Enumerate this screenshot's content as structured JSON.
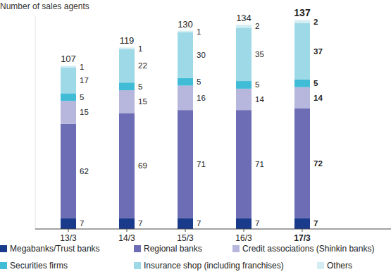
{
  "chart_data": {
    "type": "bar",
    "stacked": true,
    "data_labels": true,
    "tick_labels": "x",
    "grid": false,
    "legend": "bottom",
    "y_label": "Number of sales agents",
    "categories": [
      "13/3",
      "14/3",
      "15/3",
      "16/3",
      "17/3"
    ],
    "ylim": [
      0,
      140
    ],
    "totals": [
      107,
      119,
      130,
      134,
      137
    ],
    "series": [
      {
        "name": "Megabanks/Trust banks",
        "color": "#1a3a8c",
        "values": [
          7,
          7,
          7,
          7,
          7
        ]
      },
      {
        "name": "Regional banks",
        "color": "#6c6db5",
        "values": [
          62,
          69,
          71,
          71,
          72
        ]
      },
      {
        "name": "Credit associations (Shinkin banks)",
        "color": "#b7b6dc",
        "values": [
          15,
          15,
          16,
          14,
          14
        ]
      },
      {
        "name": "Securities firms",
        "color": "#40bcd6",
        "values": [
          5,
          5,
          5,
          5,
          5
        ]
      },
      {
        "name": "Insurance shop (including franchises)",
        "color": "#9dd9e6",
        "values": [
          17,
          22,
          30,
          35,
          37
        ]
      },
      {
        "name": "Others",
        "color": "#d3edf3",
        "values": [
          1,
          1,
          1,
          2,
          2
        ]
      }
    ]
  }
}
